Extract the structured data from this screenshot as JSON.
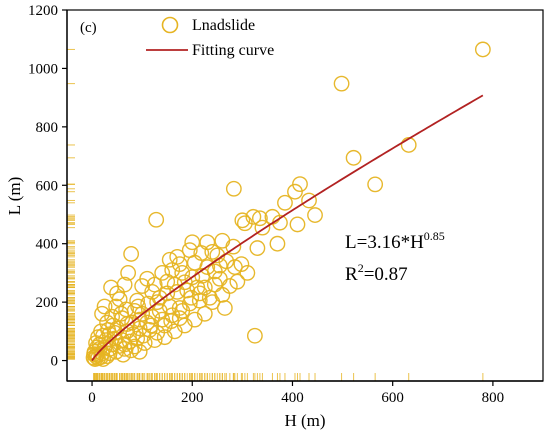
{
  "chart_data": {
    "type": "scatter",
    "panel_label": "(c)",
    "title": "",
    "xlabel": "H (m)",
    "ylabel": "L (m)",
    "xlim": [
      -50,
      900
    ],
    "ylim": [
      -70,
      1200
    ],
    "x_ticks": [
      "0",
      "200",
      "400",
      "600",
      "800"
    ],
    "x_tick_values": [
      0,
      200,
      400,
      600,
      800
    ],
    "y_ticks": [
      "0",
      "200",
      "400",
      "600",
      "800",
      "1000",
      "1200"
    ],
    "y_tick_values": [
      0,
      200,
      400,
      600,
      800,
      1000,
      1200
    ],
    "legend": {
      "position": "top-left",
      "entries": [
        {
          "label": "Lnadslide",
          "marker": "open-circle",
          "color": "#E6B422"
        },
        {
          "label": "Fitting curve",
          "marker": "line",
          "color": "#B22222"
        }
      ]
    },
    "annotation": {
      "equation_main": "L=3.16*H",
      "equation_exp": "0.85",
      "r2_prefix": "R",
      "r2_sup": "2",
      "r2_value": "=0.87"
    },
    "fit": {
      "a": 3.16,
      "b": 0.85,
      "x_range": [
        0,
        780
      ]
    },
    "series": [
      {
        "name": "Lnadslide",
        "color": "#E6B422",
        "points": [
          [
            780,
            1065
          ],
          [
            498,
            948
          ],
          [
            632,
            738
          ],
          [
            522,
            694
          ],
          [
            565,
            603
          ],
          [
            283,
            588
          ],
          [
            415,
            604
          ],
          [
            405,
            578
          ],
          [
            433,
            548
          ],
          [
            385,
            540
          ],
          [
            360,
            492
          ],
          [
            322,
            492
          ],
          [
            335,
            487
          ],
          [
            375,
            472
          ],
          [
            340,
            455
          ],
          [
            445,
            498
          ],
          [
            410,
            466
          ],
          [
            305,
            470
          ],
          [
            300,
            480
          ],
          [
            370,
            400
          ],
          [
            330,
            385
          ],
          [
            325,
            85
          ],
          [
            128,
            482
          ],
          [
            260,
            410
          ],
          [
            230,
            405
          ],
          [
            200,
            405
          ],
          [
            195,
            378
          ],
          [
            218,
            368
          ],
          [
            240,
            372
          ],
          [
            250,
            360
          ],
          [
            282,
            390
          ],
          [
            298,
            330
          ],
          [
            268,
            340
          ],
          [
            205,
            335
          ],
          [
            175,
            330
          ],
          [
            170,
            355
          ],
          [
            155,
            345
          ],
          [
            160,
            310
          ],
          [
            140,
            300
          ],
          [
            180,
            300
          ],
          [
            200,
            285
          ],
          [
            220,
            290
          ],
          [
            245,
            305
          ],
          [
            210,
            250
          ],
          [
            190,
            240
          ],
          [
            170,
            235
          ],
          [
            150,
            230
          ],
          [
            120,
            235
          ],
          [
            100,
            255
          ],
          [
            110,
            280
          ],
          [
            78,
            365
          ],
          [
            72,
            300
          ],
          [
            65,
            260
          ],
          [
            90,
            205
          ],
          [
            130,
            200
          ],
          [
            155,
            185
          ],
          [
            180,
            170
          ],
          [
            160,
            155
          ],
          [
            140,
            140
          ],
          [
            120,
            150
          ],
          [
            100,
            160
          ],
          [
            85,
            170
          ],
          [
            55,
            210
          ],
          [
            48,
            185
          ],
          [
            40,
            150
          ],
          [
            60,
            145
          ],
          [
            80,
            130
          ],
          [
            95,
            110
          ],
          [
            115,
            105
          ],
          [
            130,
            95
          ],
          [
            70,
            100
          ],
          [
            50,
            110
          ],
          [
            30,
            130
          ],
          [
            25,
            185
          ],
          [
            20,
            160
          ],
          [
            35,
            90
          ],
          [
            45,
            75
          ],
          [
            60,
            70
          ],
          [
            75,
            65
          ],
          [
            90,
            75
          ],
          [
            18,
            100
          ],
          [
            12,
            80
          ],
          [
            8,
            60
          ],
          [
            15,
            55
          ],
          [
            25,
            45
          ],
          [
            35,
            40
          ],
          [
            5,
            30
          ],
          [
            10,
            20
          ],
          [
            20,
            25
          ],
          [
            30,
            15
          ],
          [
            3,
            10
          ],
          [
            6,
            5
          ],
          [
            12,
            8
          ],
          [
            18,
            12
          ],
          [
            40,
            55
          ],
          [
            55,
            50
          ],
          [
            65,
            40
          ],
          [
            85,
            48
          ],
          [
            105,
            60
          ],
          [
            125,
            70
          ],
          [
            145,
            80
          ],
          [
            165,
            100
          ],
          [
            185,
            120
          ],
          [
            205,
            140
          ],
          [
            225,
            160
          ],
          [
            240,
            200
          ],
          [
            260,
            225
          ],
          [
            275,
            255
          ],
          [
            290,
            270
          ],
          [
            265,
            180
          ],
          [
            235,
            215
          ],
          [
            215,
            205
          ],
          [
            195,
            195
          ],
          [
            175,
            180
          ],
          [
            135,
            170
          ],
          [
            110,
            130
          ],
          [
            95,
            140
          ],
          [
            70,
            125
          ],
          [
            45,
            95
          ],
          [
            28,
            70
          ],
          [
            15,
            40
          ],
          [
            8,
            15
          ],
          [
            22,
            5
          ],
          [
            35,
            25
          ],
          [
            48,
            30
          ],
          [
            62,
            20
          ],
          [
            78,
            35
          ],
          [
            95,
            30
          ],
          [
            50,
            230
          ],
          [
            38,
            250
          ],
          [
            165,
            260
          ],
          [
            185,
            268
          ],
          [
            225,
            250
          ],
          [
            255,
            280
          ],
          [
            310,
            300
          ],
          [
            285,
            320
          ],
          [
            255,
            325
          ],
          [
            230,
            320
          ],
          [
            150,
            270
          ],
          [
            125,
            260
          ],
          [
            135,
            215
          ],
          [
            112,
            195
          ],
          [
            92,
            185
          ],
          [
            68,
            175
          ],
          [
            58,
            160
          ],
          [
            42,
            120
          ],
          [
            32,
            105
          ],
          [
            22,
            85
          ],
          [
            10,
            45
          ],
          [
            4,
            22
          ],
          [
            65,
            55
          ],
          [
            82,
            90
          ],
          [
            102,
            85
          ],
          [
            118,
            120
          ],
          [
            145,
            120
          ],
          [
            158,
            135
          ],
          [
            175,
            145
          ],
          [
            198,
            215
          ],
          [
            215,
            230
          ],
          [
            245,
            260
          ]
        ]
      }
    ]
  }
}
